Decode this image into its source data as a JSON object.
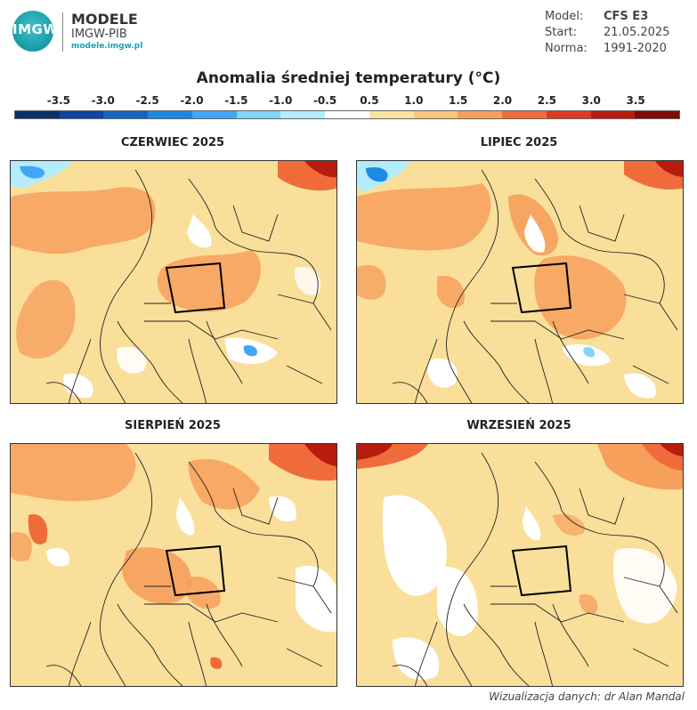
{
  "header": {
    "logo_text": "IMGW",
    "brand_title": "MODELE",
    "brand_subtitle": "IMGW-PIB",
    "brand_url": "modele.imgw.pl",
    "meta": {
      "model_label": "Model:",
      "model_value": "CFS E3",
      "start_label": "Start:",
      "start_value": "21.05.2025",
      "norm_label": "Norma:",
      "norm_value": "1991-2020"
    }
  },
  "title": "Anomalia średniej temperatury (°C)",
  "legend": {
    "labels": [
      "-3.5",
      "-3.0",
      "-2.5",
      "-2.0",
      "-1.5",
      "-1.0",
      "-0.5",
      "0.5",
      "1.0",
      "1.5",
      "2.0",
      "2.5",
      "3.0",
      "3.5"
    ],
    "colors": [
      "#08306b",
      "#0d47a1",
      "#1565c0",
      "#1e88e5",
      "#42a5f5",
      "#81d4fa",
      "#b3ecfa",
      "#ffffff",
      "#fbe3a0",
      "#fbc67a",
      "#f6a05c",
      "#ef6c3a",
      "#dc3b22",
      "#b71c0c",
      "#7d0d05"
    ]
  },
  "maps": [
    {
      "title": "CZERWIEC 2025"
    },
    {
      "title": "LIPIEC 2025"
    },
    {
      "title": "SIERPIEŃ 2025"
    },
    {
      "title": "WRZESIEŃ 2025"
    }
  ],
  "credit": "Wizualizacja danych: dr Alan Mandal"
}
